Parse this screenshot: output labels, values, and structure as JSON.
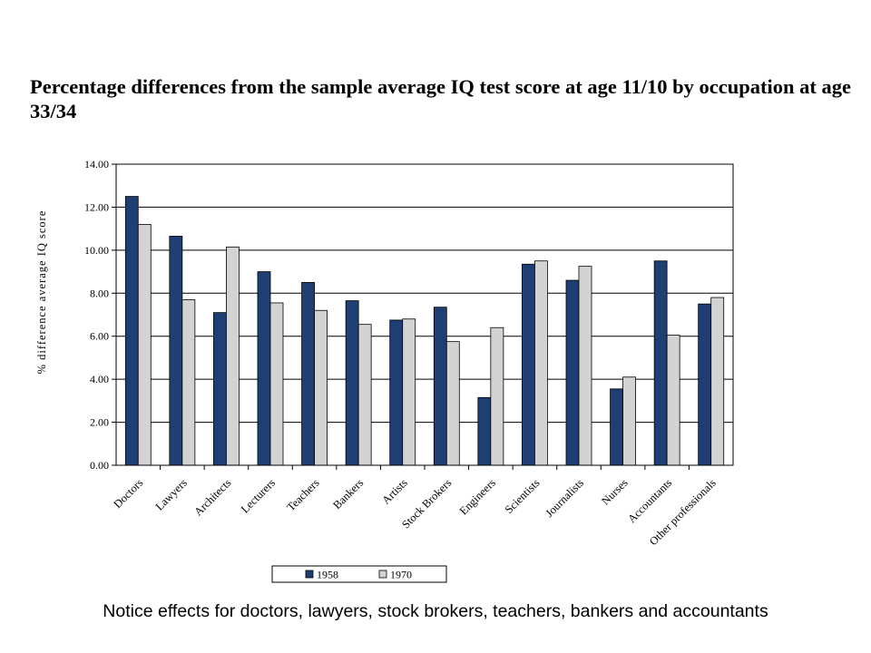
{
  "title": "Percentage differences from the sample average IQ test score at age 11/10 by occupation at age 33/34",
  "caption": "Notice effects for doctors, lawyers, stock brokers, teachers, bankers and accountants",
  "colors": {
    "s1958": "#1F3E73",
    "s1970": "#D3D3D3"
  },
  "chart_data": {
    "type": "bar",
    "title": "Percentage differences from the sample average IQ test score at age 11/10 by occupation at age 33/34",
    "ylabel": "% difference average IQ score",
    "xlabel": "",
    "ylim": [
      0,
      14
    ],
    "yticks": [
      "0.00",
      "2.00",
      "4.00",
      "6.00",
      "8.00",
      "10.00",
      "12.00",
      "14.00"
    ],
    "grid": true,
    "legend_position": "bottom",
    "categories": [
      "Doctors",
      "Lawyers",
      "Architects",
      "Lecturers",
      "Teachers",
      "Bankers",
      "Artists",
      "Stock Brokers",
      "Engineers",
      "Scientists",
      "Journalists",
      "Nurses",
      "Accountants",
      "Other professionals"
    ],
    "series": [
      {
        "name": "1958",
        "values": [
          12.5,
          10.65,
          7.1,
          9.0,
          8.5,
          7.65,
          6.75,
          7.35,
          3.15,
          9.35,
          8.6,
          3.55,
          9.5,
          7.5
        ]
      },
      {
        "name": "1970",
        "values": [
          11.2,
          7.7,
          10.15,
          7.55,
          7.2,
          6.55,
          6.8,
          5.75,
          6.4,
          9.5,
          9.25,
          4.1,
          6.05,
          7.8
        ]
      }
    ]
  }
}
